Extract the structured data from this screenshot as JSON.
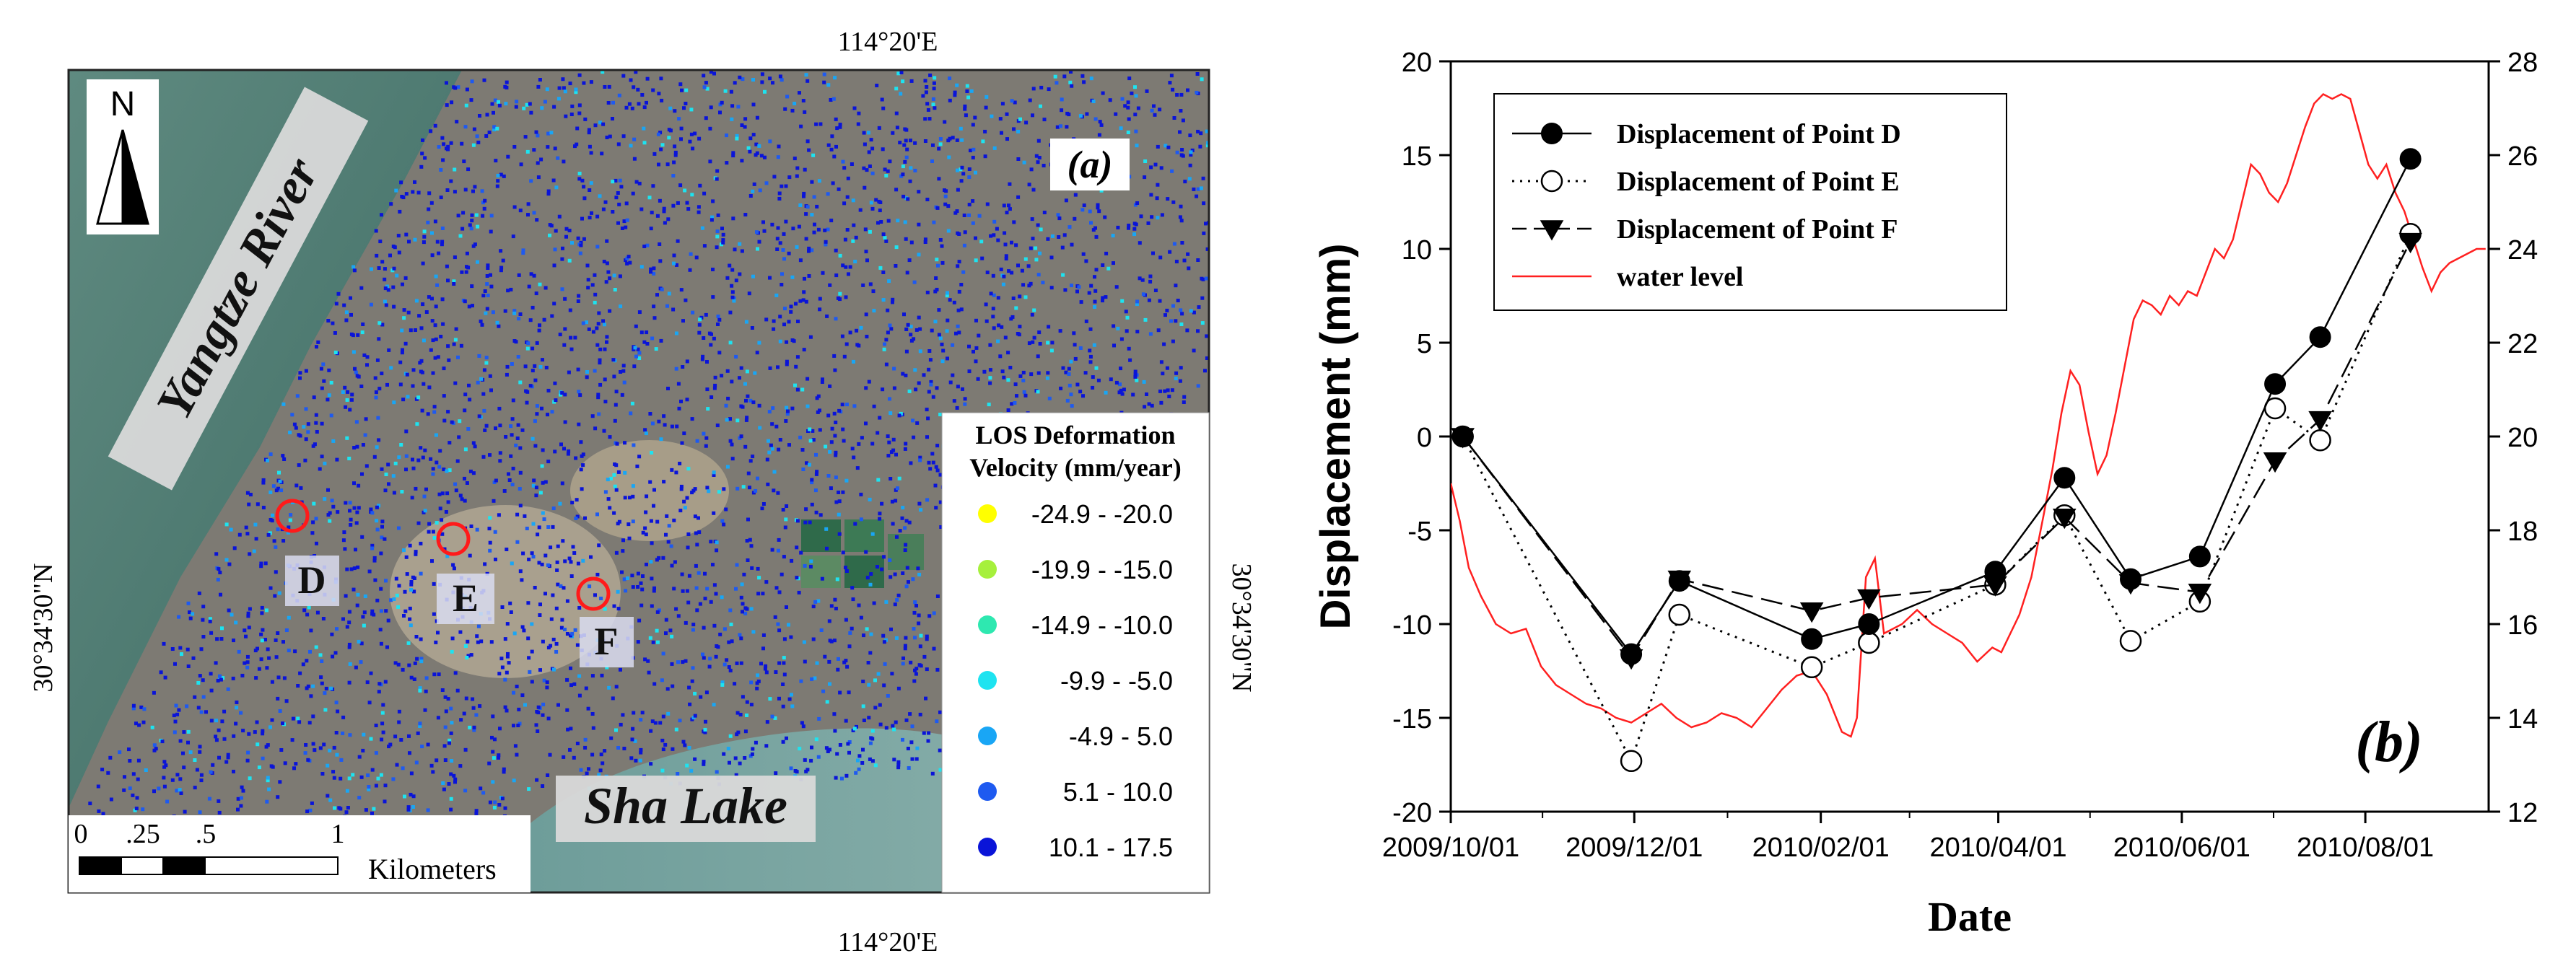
{
  "panel_a": {
    "panel_label": "(a)",
    "top_lon_label": "114°20'E",
    "bottom_lon_label": "114°20'E",
    "left_lat_label": "30°34'30\"N",
    "right_lat_label": "30°34'30\"N",
    "north_label": "N",
    "river_label": "Yangtze River",
    "lake_label": "Sha Lake",
    "points": [
      {
        "label": "D"
      },
      {
        "label": "E"
      },
      {
        "label": "F"
      }
    ],
    "legend": {
      "title_line1": "LOS Deformation",
      "title_line2": "Velocity (mm/year)",
      "classes": [
        {
          "label": "-24.9 - -20.0",
          "color": "#ffff00"
        },
        {
          "label": "-19.9 - -15.0",
          "color": "#a6f03c"
        },
        {
          "label": "-14.9 - -10.0",
          "color": "#2ee8b0"
        },
        {
          "label": "-9.9 - -5.0",
          "color": "#1ee3f0"
        },
        {
          "label": "-4.9 - 5.0",
          "color": "#19a6f5"
        },
        {
          "label": "5.1 - 10.0",
          "color": "#1e5af0"
        },
        {
          "label": "10.1 - 17.5",
          "color": "#0a14d8"
        }
      ]
    },
    "scale_bar": {
      "ticks": [
        "0",
        ".25",
        ".5",
        "1"
      ],
      "unit": "Kilometers"
    }
  },
  "chart_data": {
    "type": "line",
    "panel_label": "(b)",
    "xlabel": "Date",
    "ylabel": "Displacement (mm)",
    "xlim": [
      0,
      345
    ],
    "ylim": [
      -20,
      20
    ],
    "y2lim": [
      12,
      28
    ],
    "x_ticks": [
      {
        "x": 0,
        "label": "2009/10/01"
      },
      {
        "x": 61,
        "label": "2009/12/01"
      },
      {
        "x": 123,
        "label": "2010/02/01"
      },
      {
        "x": 182,
        "label": "2010/04/01"
      },
      {
        "x": 243,
        "label": "2010/06/01"
      },
      {
        "x": 304,
        "label": "2010/08/01"
      }
    ],
    "y_ticks": [
      -20,
      -15,
      -10,
      -5,
      0,
      5,
      10,
      15,
      20
    ],
    "y2_ticks": [
      12,
      14,
      16,
      18,
      20,
      22,
      24,
      26,
      28
    ],
    "legend": [
      {
        "name": "Displacement of Point D"
      },
      {
        "name": "Displacement of Point E"
      },
      {
        "name": "Displacement of Point F"
      },
      {
        "name": "water level"
      }
    ],
    "series": [
      {
        "name": "Displacement of Point D",
        "color": "#000000",
        "marker": "filled-circle",
        "x": [
          4,
          60,
          76,
          120,
          139,
          181,
          204,
          226,
          249,
          274,
          289,
          319
        ],
        "values": [
          0,
          -11.6,
          -7.7,
          -10.8,
          -10.0,
          -7.2,
          -2.2,
          -7.6,
          -6.4,
          2.8,
          5.3,
          14.8
        ]
      },
      {
        "name": "Displacement of Point E",
        "color": "#000000",
        "marker": "open-circle",
        "x": [
          4,
          60,
          76,
          120,
          139,
          181,
          204,
          226,
          249,
          274,
          289,
          319
        ],
        "values": [
          0,
          -17.3,
          -9.5,
          -12.3,
          -11.0,
          -7.9,
          -4.2,
          -10.9,
          -8.8,
          1.5,
          -0.2,
          10.8
        ]
      },
      {
        "name": "Displacement of Point F",
        "color": "#000000",
        "marker": "filled-triangle-down",
        "x": [
          4,
          60,
          76,
          120,
          139,
          181,
          204,
          226,
          249,
          274,
          289,
          319
        ],
        "values": [
          0,
          -11.8,
          -7.6,
          -9.3,
          -8.6,
          -7.9,
          -4.3,
          -7.8,
          -8.3,
          -1.3,
          0.9,
          10.4
        ]
      },
      {
        "name": "water level",
        "color": "#ff2020",
        "axis": "right",
        "x": [
          0,
          3,
          6,
          10,
          15,
          20,
          25,
          30,
          35,
          40,
          45,
          50,
          55,
          60,
          65,
          70,
          75,
          80,
          85,
          90,
          95,
          100,
          105,
          110,
          115,
          120,
          125,
          130,
          133,
          135,
          138,
          141,
          144,
          147,
          150,
          155,
          160,
          165,
          170,
          175,
          180,
          183,
          186,
          189,
          193,
          197,
          200,
          203,
          206,
          209,
          212,
          215,
          218,
          221,
          224,
          227,
          230,
          233,
          236,
          239,
          242,
          245,
          248,
          251,
          254,
          257,
          260,
          263,
          266,
          269,
          272,
          275,
          278,
          281,
          284,
          287,
          290,
          293,
          296,
          299,
          302,
          305,
          308,
          311,
          314,
          317,
          320,
          323,
          326,
          329,
          332,
          335,
          338,
          341,
          344
        ],
        "values": [
          19.0,
          18.2,
          17.2,
          16.6,
          16.0,
          15.8,
          15.9,
          15.1,
          14.7,
          14.5,
          14.3,
          14.2,
          14.0,
          13.9,
          14.1,
          14.3,
          14.0,
          13.8,
          13.9,
          14.1,
          14.0,
          13.8,
          14.2,
          14.6,
          14.9,
          15.0,
          14.5,
          13.7,
          13.6,
          14.0,
          17.0,
          17.4,
          15.8,
          15.9,
          16.0,
          16.3,
          16.0,
          15.8,
          15.6,
          15.2,
          15.5,
          15.4,
          15.8,
          16.2,
          17.0,
          18.3,
          19.3,
          20.5,
          21.4,
          21.1,
          20.1,
          19.2,
          19.6,
          20.5,
          21.5,
          22.5,
          22.9,
          22.8,
          22.6,
          23.0,
          22.8,
          23.1,
          23.0,
          23.5,
          24.0,
          23.8,
          24.2,
          25.0,
          25.8,
          25.6,
          25.2,
          25.0,
          25.4,
          26.0,
          26.6,
          27.1,
          27.3,
          27.2,
          27.3,
          27.2,
          26.5,
          25.8,
          25.5,
          25.8,
          25.2,
          24.8,
          24.2,
          23.6,
          23.1,
          23.5,
          23.7,
          23.8,
          23.9,
          24.0,
          24.0
        ]
      }
    ]
  }
}
